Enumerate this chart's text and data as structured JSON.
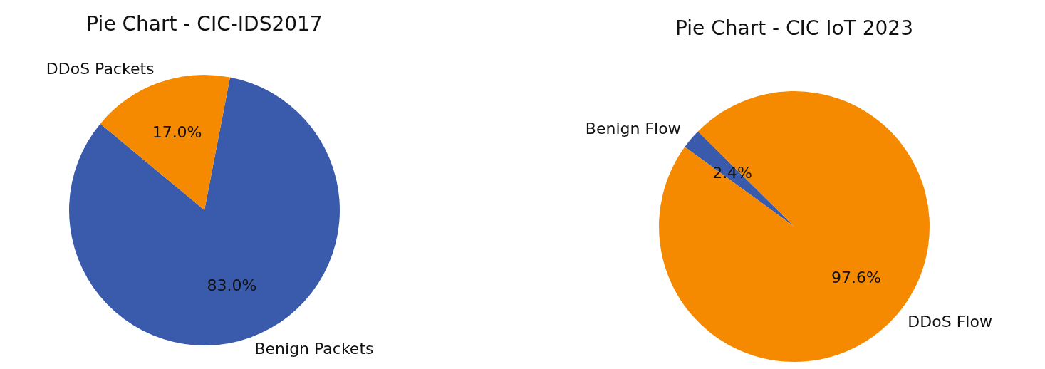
{
  "chart_data": [
    {
      "type": "pie",
      "title": "Pie Chart - CIC-IDS2017",
      "categories": [
        "Benign Packets",
        "DDoS Packets"
      ],
      "values": [
        83.0,
        17.0
      ],
      "colors": [
        "#3a5aab",
        "#f58a00"
      ],
      "value_labels": [
        "83.0%",
        "17.0%"
      ]
    },
    {
      "type": "pie",
      "title": "Pie Chart - CIC IoT 2023",
      "categories": [
        "Benign Flow",
        "DDoS Flow"
      ],
      "values": [
        2.4,
        97.6
      ],
      "colors": [
        "#3a5aab",
        "#f58a00"
      ],
      "value_labels": [
        "2.4%",
        "97.6%"
      ]
    }
  ]
}
